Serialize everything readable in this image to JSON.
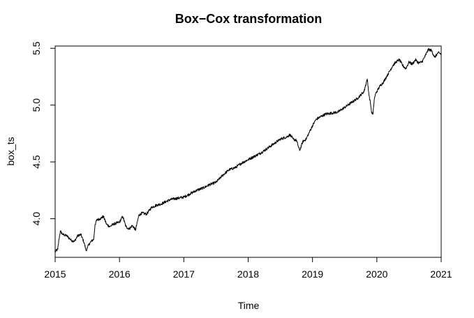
{
  "chart_data": {
    "type": "line",
    "title": "Box−Cox transformation",
    "xlabel": "Time",
    "ylabel": "box_ts",
    "xlim": [
      2015.0,
      2021.0
    ],
    "ylim": [
      3.66,
      5.52
    ],
    "x_ticks": [
      2015,
      2016,
      2017,
      2018,
      2019,
      2020,
      2021
    ],
    "x_tick_labels": [
      "2015",
      "2016",
      "2017",
      "2018",
      "2019",
      "2020",
      "2021"
    ],
    "y_ticks": [
      4.0,
      4.5,
      5.0,
      5.5
    ],
    "y_tick_labels": [
      "4.0",
      "4.5",
      "5.0",
      "5.5"
    ],
    "grid": false,
    "legend": "none",
    "series": [
      {
        "color": "#000000",
        "x": [
          2015.0,
          2015.04,
          2015.06,
          2015.08,
          2015.12,
          2015.18,
          2015.25,
          2015.3,
          2015.35,
          2015.4,
          2015.45,
          2015.48,
          2015.5,
          2015.52,
          2015.56,
          2015.6,
          2015.62,
          2015.65,
          2015.7,
          2015.75,
          2015.8,
          2015.85,
          2015.9,
          2016.0,
          2016.05,
          2016.1,
          2016.15,
          2016.2,
          2016.25,
          2016.3,
          2016.35,
          2016.42,
          2016.5,
          2016.58,
          2016.65,
          2016.72,
          2016.8,
          2016.9,
          2017.0,
          2017.1,
          2017.2,
          2017.3,
          2017.4,
          2017.5,
          2017.6,
          2017.7,
          2017.8,
          2017.9,
          2018.0,
          2018.1,
          2018.2,
          2018.3,
          2018.4,
          2018.5,
          2018.6,
          2018.65,
          2018.7,
          2018.75,
          2018.8,
          2018.85,
          2018.9,
          2018.95,
          2019.0,
          2019.05,
          2019.1,
          2019.2,
          2019.3,
          2019.4,
          2019.5,
          2019.6,
          2019.7,
          2019.8,
          2019.85,
          2019.88,
          2019.9,
          2019.92,
          2019.94,
          2019.96,
          2019.98,
          2020.0,
          2020.05,
          2020.1,
          2020.15,
          2020.2,
          2020.25,
          2020.3,
          2020.35,
          2020.4,
          2020.45,
          2020.5,
          2020.55,
          2020.6,
          2020.65,
          2020.7,
          2020.75,
          2020.8,
          2020.85,
          2020.9,
          2020.95,
          2021.0
        ],
        "values": [
          3.71,
          3.73,
          3.82,
          3.89,
          3.86,
          3.85,
          3.81,
          3.8,
          3.85,
          3.86,
          3.79,
          3.72,
          3.74,
          3.77,
          3.8,
          3.82,
          3.95,
          3.99,
          4.0,
          4.02,
          3.95,
          3.93,
          3.95,
          3.97,
          4.02,
          3.93,
          3.91,
          3.94,
          3.9,
          4.03,
          4.05,
          4.04,
          4.1,
          4.12,
          4.13,
          4.15,
          4.17,
          4.18,
          4.19,
          4.22,
          4.25,
          4.27,
          4.3,
          4.32,
          4.38,
          4.43,
          4.45,
          4.49,
          4.52,
          4.55,
          4.58,
          4.62,
          4.66,
          4.7,
          4.72,
          4.74,
          4.7,
          4.69,
          4.6,
          4.68,
          4.7,
          4.76,
          4.82,
          4.87,
          4.89,
          4.92,
          4.93,
          4.94,
          4.98,
          5.02,
          5.06,
          5.12,
          5.23,
          5.08,
          5.02,
          4.93,
          4.92,
          5.05,
          5.1,
          5.12,
          5.17,
          5.2,
          5.25,
          5.3,
          5.35,
          5.38,
          5.4,
          5.35,
          5.32,
          5.38,
          5.36,
          5.4,
          5.37,
          5.38,
          5.43,
          5.49,
          5.48,
          5.42,
          5.46,
          5.45
        ]
      }
    ]
  }
}
